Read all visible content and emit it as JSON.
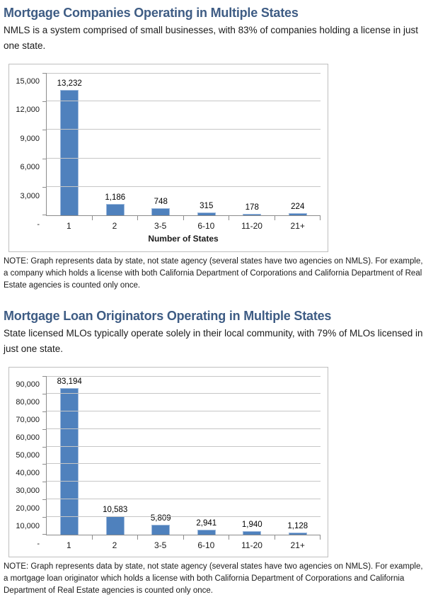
{
  "colors": {
    "heading": "#3E5C84",
    "bar_fill": "#4F81BD",
    "bar_border": "#9DB9DC",
    "gridline": "#C6C6C6",
    "axis": "#8C8C8C",
    "frame_border": "#BFBFBF"
  },
  "sections": [
    {
      "title": "Mortgage Companies Operating in Multiple States",
      "subtitle": "NMLS is a system comprised of small businesses, with 83% of companies holding a license in just one state.",
      "note": "NOTE: Graph represents data by state, not state agency (several states have two agencies on NMLS). For example, a company which holds a license with both California Department of Corporations and California Department of Real Estate agencies is counted only once."
    },
    {
      "title": "Mortgage Loan Originators Operating in Multiple States",
      "subtitle": "State licensed MLOs typically operate solely in their local community, with 79% of MLOs licensed in just one state.",
      "note": "NOTE: Graph represents data by state, not state agency (several states have two agencies on NMLS). For example, a mortgage loan originator which holds a license with both California Department of Corporations and California Department of Real Estate agencies is counted only once."
    }
  ],
  "chart_data": [
    {
      "type": "bar",
      "title": "Mortgage Companies Operating in Multiple States",
      "categories": [
        "1",
        "2",
        "3-5",
        "6-10",
        "11-20",
        "21+"
      ],
      "values": [
        13232,
        1186,
        748,
        315,
        178,
        224
      ],
      "value_labels": [
        "13,232",
        "1,186",
        "748",
        "315",
        "178",
        "224"
      ],
      "xlabel": "Number of States",
      "ylabel": "",
      "ylim": [
        0,
        15000
      ],
      "ytick_interval": 3000,
      "ytick_labels_top_down": [
        "15,000",
        "12,000",
        "9,000",
        "6,000",
        "3,000",
        "-"
      ],
      "grid": true,
      "legend": "none",
      "bar_color": "#4F81BD"
    },
    {
      "type": "bar",
      "title": "Mortgage Loan Originators Operating in Multiple States",
      "categories": [
        "1",
        "2",
        "3-5",
        "6-10",
        "11-20",
        "21+"
      ],
      "values": [
        83194,
        10583,
        5809,
        2941,
        1940,
        1128
      ],
      "value_labels": [
        "83,194",
        "10,583",
        "5,809",
        "2,941",
        "1,940",
        "1,128"
      ],
      "xlabel": "",
      "ylabel": "",
      "ylim": [
        0,
        90000
      ],
      "ytick_interval": 10000,
      "ytick_labels_top_down": [
        "90,000",
        "80,000",
        "70,000",
        "60,000",
        "50,000",
        "40,000",
        "30,000",
        "20,000",
        "10,000",
        "-"
      ],
      "grid": true,
      "legend": "none",
      "bar_color": "#4F81BD"
    }
  ]
}
